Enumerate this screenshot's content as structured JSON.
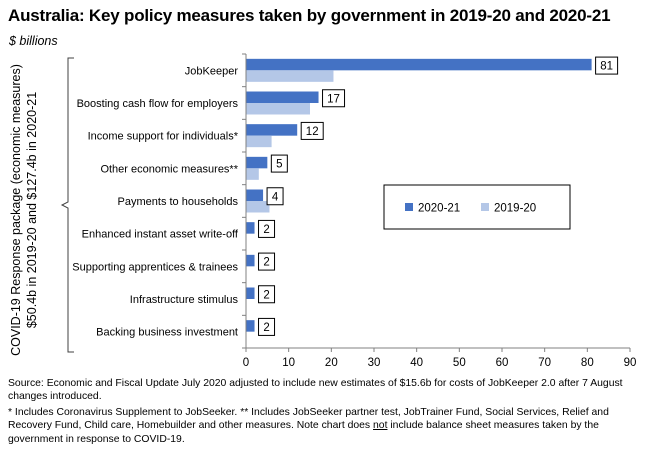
{
  "title": "Australia: Key policy measures taken by government in 2019-20 and 2020-21",
  "units": "$ billions",
  "colors": {
    "series_2020_21": "#4472C4",
    "series_2019_20": "#B4C7E7",
    "axis": "#808080",
    "bracket": "#404040"
  },
  "chart_data": {
    "type": "bar",
    "orientation": "horizontal",
    "categories": [
      "JobKeeper",
      "Boosting cash flow for employers",
      "Income support for individuals*",
      "Other economic measures**",
      "Payments to households",
      "Enhanced instant asset write-off",
      "Supporting apprentices & trainees",
      "Infrastructure stimulus",
      "Backing business investment"
    ],
    "series": [
      {
        "name": "2020-21",
        "values": [
          81,
          17,
          12,
          5,
          4,
          2,
          2,
          2,
          2
        ],
        "data_labels": [
          "81",
          "17",
          "12",
          "5",
          "4",
          "2",
          "2",
          "2",
          "2"
        ]
      },
      {
        "name": "2019-20",
        "values": [
          20.5,
          15,
          6,
          3,
          5.5,
          0,
          0,
          0,
          0
        ]
      }
    ],
    "xlim": [
      0,
      90
    ],
    "xticks": [
      0,
      10,
      20,
      30,
      40,
      50,
      60,
      70,
      80,
      90
    ],
    "grid": false,
    "legend_position": "center-right",
    "group_label_lines": [
      "COVID-19 Response package (economic measures)",
      "$50.4b in 2019-20 and $127.4b in 2020-21"
    ]
  },
  "footnotes": {
    "source": "Source: Economic and Fiscal Update July 2020 adjusted to include new estimates of $15.6b for costs of JobKeeper 2.0 after 7 August changes introduced.",
    "note_a": "* Includes Coronavirus Supplement to JobSeeker.  ** Includes JobSeeker partner test, JobTrainer Fund, Social Services, Relief and Recovery Fund, Child care, Homebuilder and other measures.  Note chart does ",
    "note_b": "not",
    "note_c": " include balance sheet measures taken by the government in response to COVID-19."
  }
}
